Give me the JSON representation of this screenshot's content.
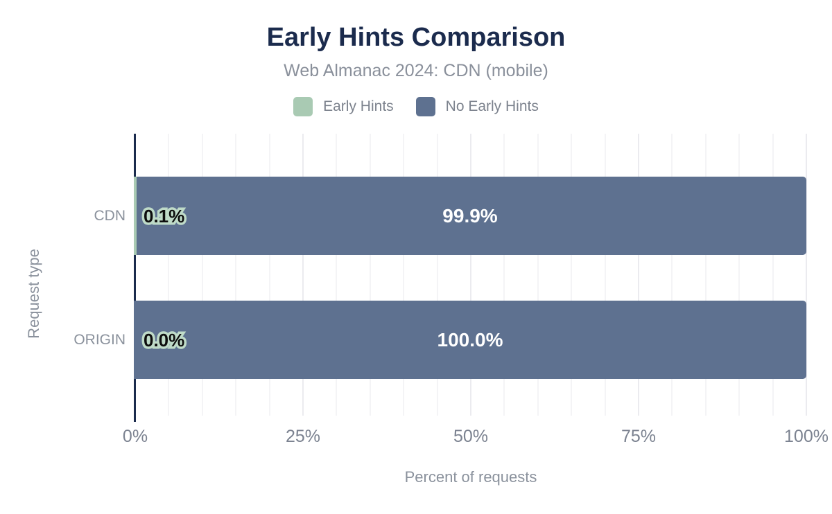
{
  "chart": {
    "title": "Early Hints Comparison",
    "subtitle": "Web Almanac 2024: CDN (mobile)"
  },
  "chart_data": {
    "type": "bar",
    "orientation": "horizontal",
    "stacked": true,
    "title": "Early Hints Comparison",
    "subtitle": "Web Almanac 2024: CDN (mobile)",
    "categories": [
      "CDN",
      "ORIGIN"
    ],
    "series": [
      {
        "name": "Early Hints",
        "color": "#a9cab3",
        "values": [
          0.1,
          0.0
        ],
        "labels": [
          "0.1%",
          "0.0%"
        ]
      },
      {
        "name": "No Early Hints",
        "color": "#5e7190",
        "values": [
          99.9,
          100.0
        ],
        "labels": [
          "99.9%",
          "100.0%"
        ]
      }
    ],
    "xlabel": "Percent of requests",
    "ylabel": "Request type",
    "xlim": [
      0,
      100
    ],
    "xticks": [
      0,
      25,
      50,
      75,
      100
    ],
    "xtick_labels": [
      "0%",
      "25%",
      "50%",
      "75%",
      "100%"
    ],
    "minor_grid_step": 5,
    "grid": true,
    "legend_position": "top"
  },
  "colors": {
    "title": "#1b2b4d",
    "subtitle": "#8a909b",
    "axis_line": "#1b2b4d",
    "grid_minor": "#f4f4f6",
    "grid_major": "#ebebef",
    "tick_label": "#7b8290",
    "category_label": "#8a919c",
    "axis_title": "#8a919c",
    "bar_label_light": "#ffffff",
    "bar_label_dark": "#0d0d0d",
    "label_halo": "#bfdbc8"
  }
}
